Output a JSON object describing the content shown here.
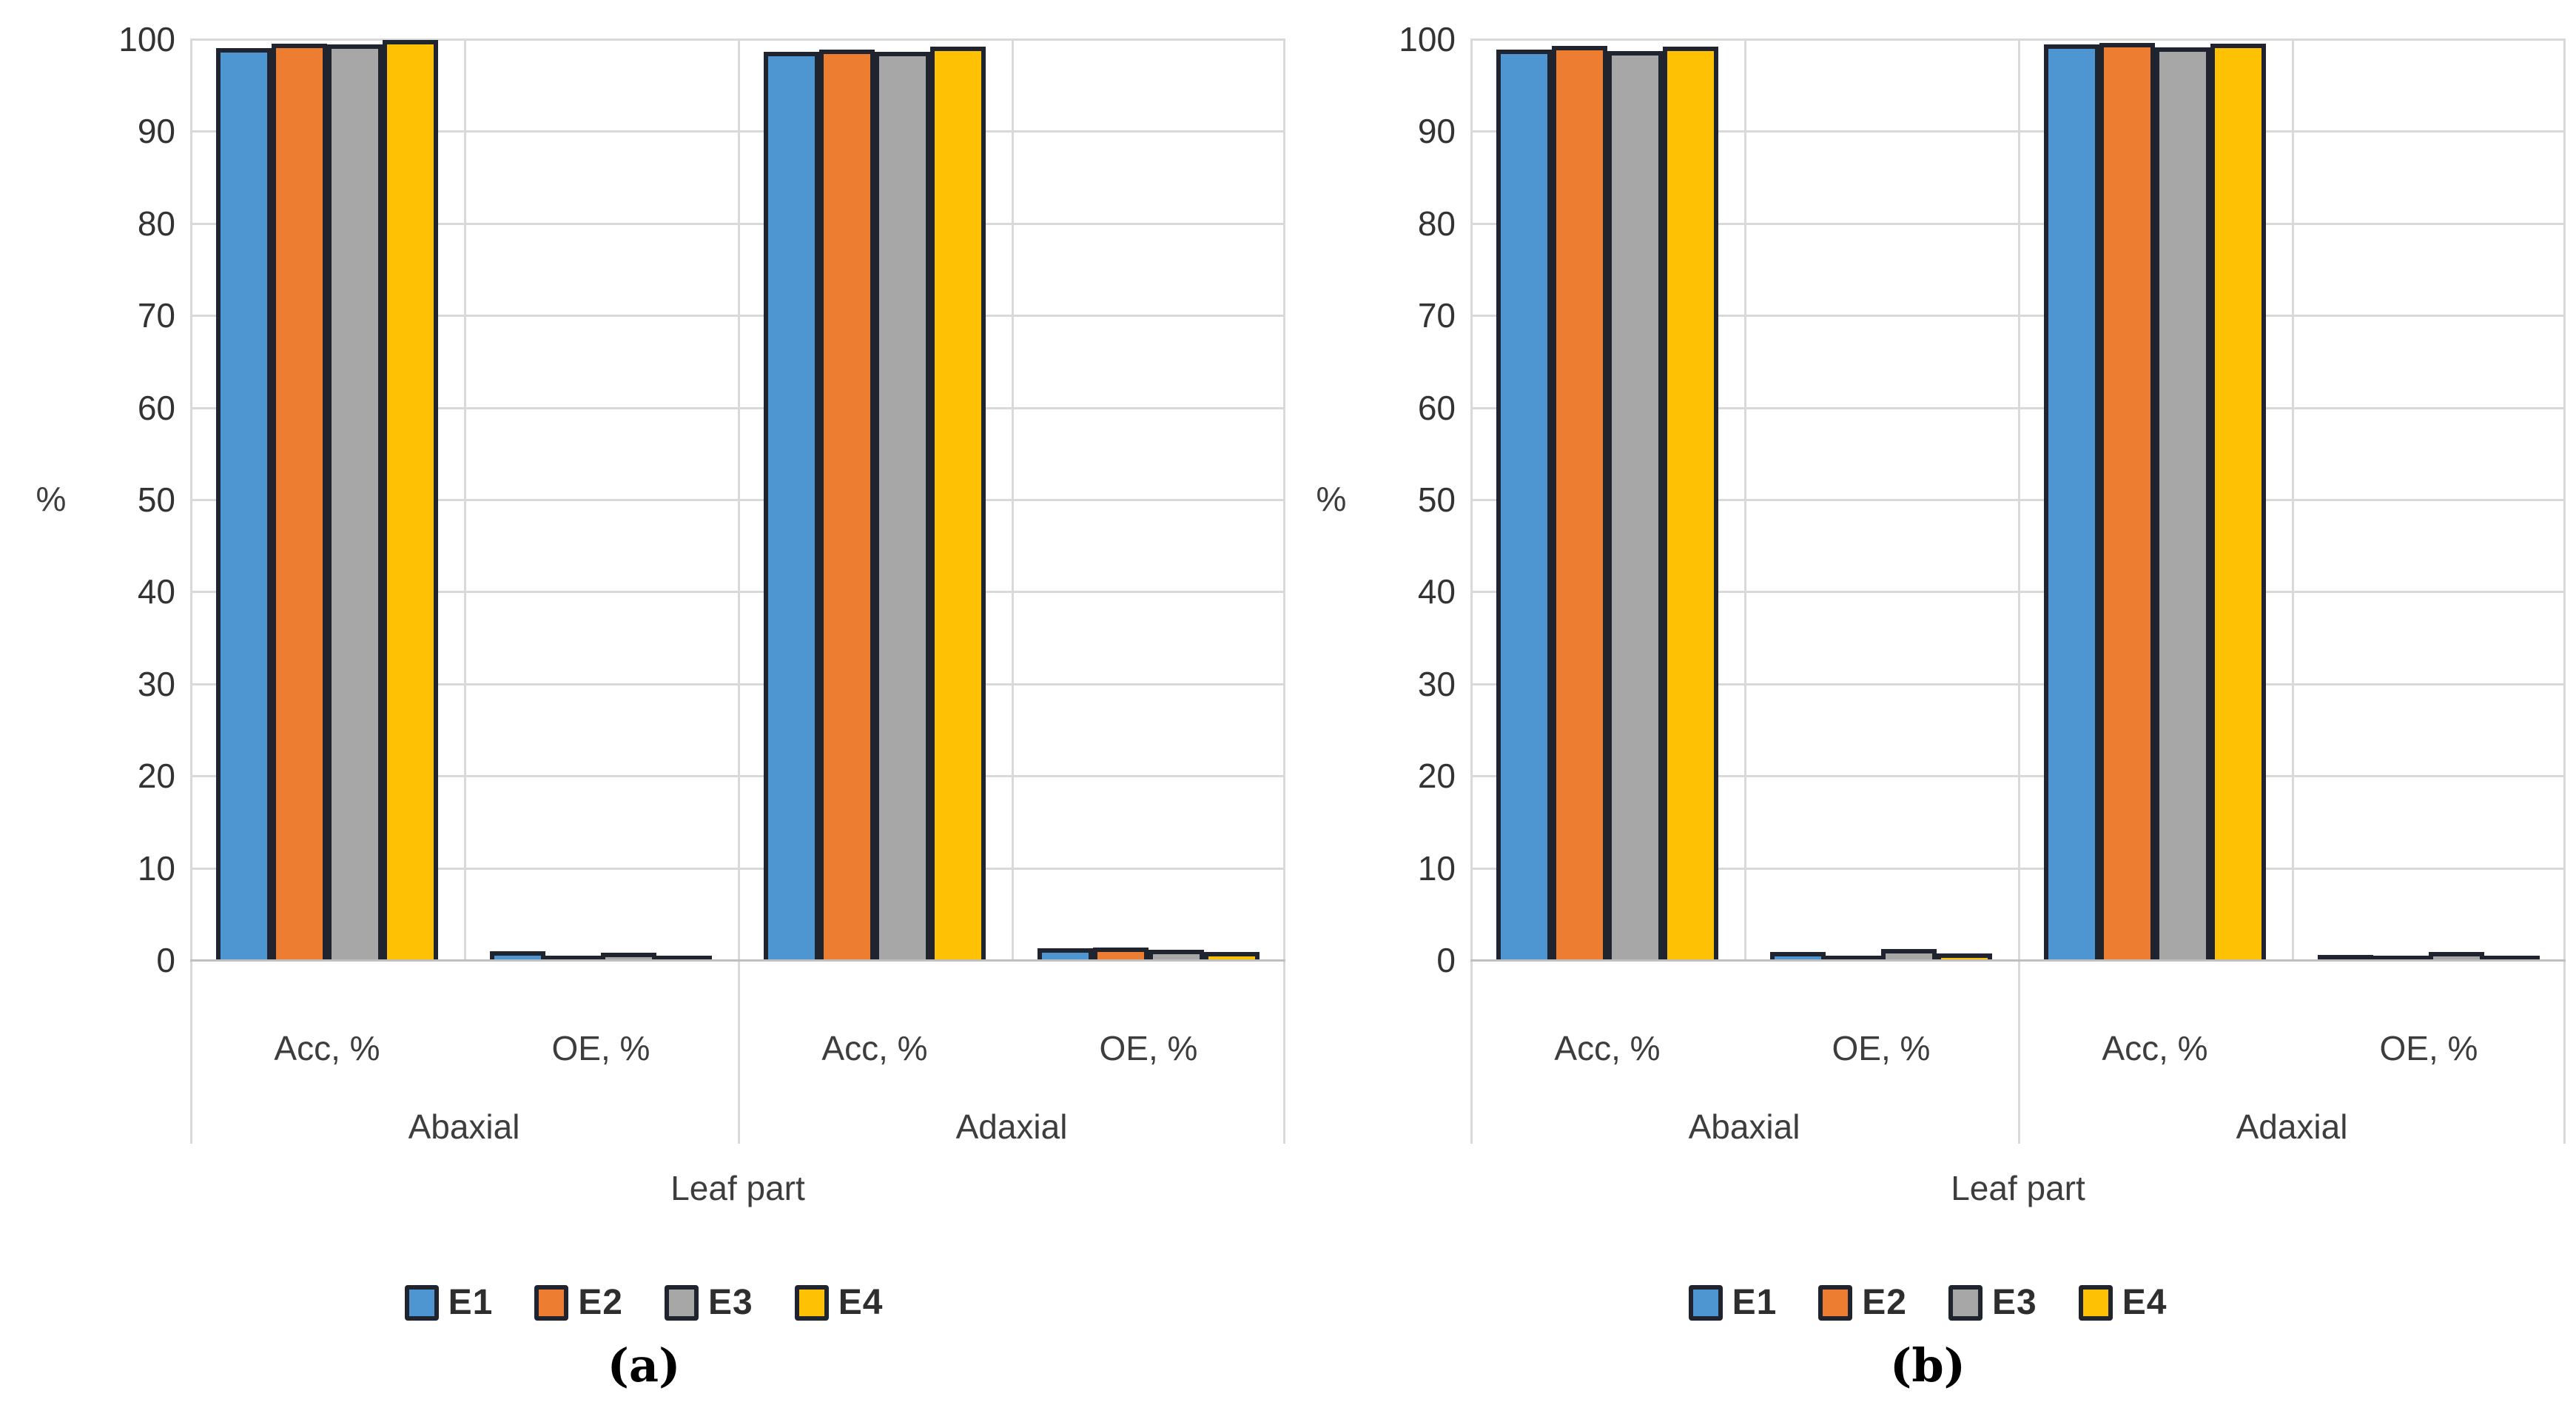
{
  "style": {
    "bar_border_color": "#20242f",
    "grid_color": "#d9d9d9",
    "axis_line_color": "#bfbfbf",
    "text_color": "#3d3d3d",
    "series_colors": {
      "E1": "#4e96d2",
      "E2": "#ed7d31",
      "E3": "#a7a7a7",
      "E4": "#ffc103"
    }
  },
  "chart_data": [
    {
      "type": "bar",
      "title": "(a)",
      "xlabel": "Leaf part",
      "ylabel": "%",
      "ylim": [
        0,
        100
      ],
      "yticks": [
        0,
        10,
        20,
        30,
        40,
        50,
        60,
        70,
        80,
        90,
        100
      ],
      "grid": true,
      "legend_position": "bottom",
      "category_groups": [
        "Abaxial",
        "Adaxial"
      ],
      "subcategories": [
        "Acc, %",
        "OE, %"
      ],
      "categories": [
        "Abaxial Acc, %",
        "Abaxial OE, %",
        "Adaxial Acc, %",
        "Adaxial OE, %"
      ],
      "series": [
        {
          "name": "E1",
          "color": "#4e96d2",
          "values": [
            99.0,
            1.0,
            98.6,
            1.3
          ]
        },
        {
          "name": "E2",
          "color": "#ed7d31",
          "values": [
            99.5,
            0.4,
            98.9,
            1.4
          ]
        },
        {
          "name": "E3",
          "color": "#a7a7a7",
          "values": [
            99.4,
            0.8,
            98.6,
            1.1
          ]
        },
        {
          "name": "E4",
          "color": "#ffc103",
          "values": [
            99.9,
            0.1,
            99.2,
            0.9
          ]
        }
      ]
    },
    {
      "type": "bar",
      "title": "(b)",
      "xlabel": "Leaf part",
      "ylabel": "%",
      "ylim": [
        0,
        100
      ],
      "yticks": [
        0,
        10,
        20,
        30,
        40,
        50,
        60,
        70,
        80,
        90,
        100
      ],
      "grid": true,
      "legend_position": "bottom",
      "category_groups": [
        "Abaxial",
        "Adaxial"
      ],
      "subcategories": [
        "Acc, %",
        "OE, %"
      ],
      "categories": [
        "Abaxial Acc, %",
        "Abaxial OE, %",
        "Adaxial Acc, %",
        "Adaxial OE, %"
      ],
      "series": [
        {
          "name": "E1",
          "color": "#4e96d2",
          "values": [
            98.9,
            0.9,
            99.4,
            0.6
          ]
        },
        {
          "name": "E2",
          "color": "#ed7d31",
          "values": [
            99.3,
            0.5,
            99.6,
            0.5
          ]
        },
        {
          "name": "E3",
          "color": "#a7a7a7",
          "values": [
            98.7,
            1.2,
            99.1,
            0.9
          ]
        },
        {
          "name": "E4",
          "color": "#ffc103",
          "values": [
            99.2,
            0.7,
            99.5,
            0.5
          ]
        }
      ]
    }
  ]
}
